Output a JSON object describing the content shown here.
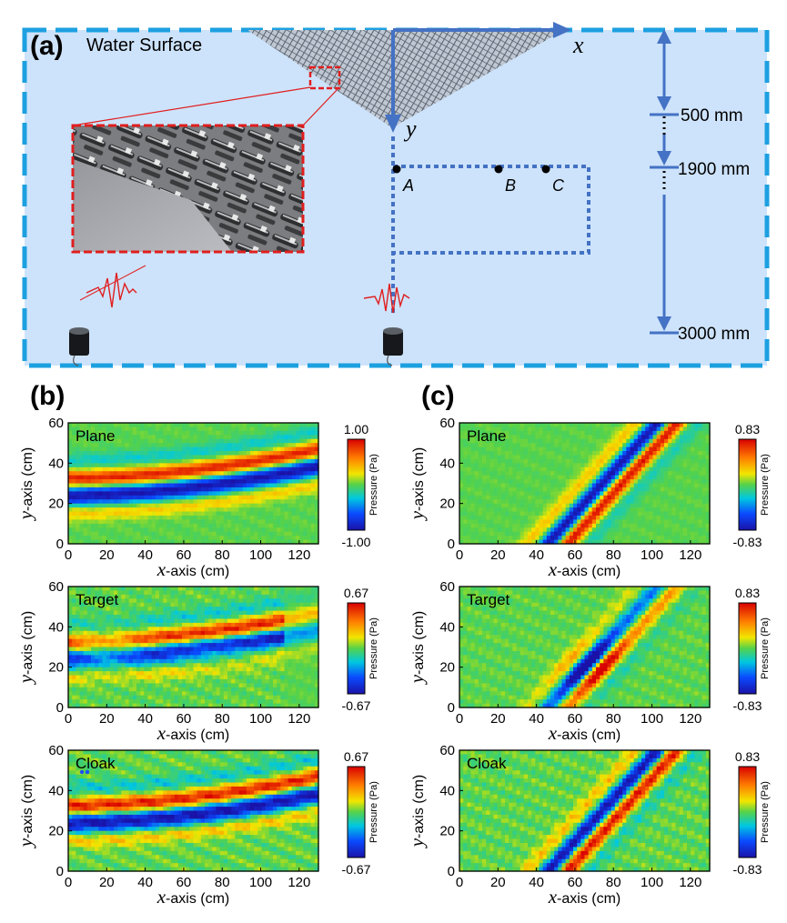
{
  "panel_a": {
    "letter": "(a)",
    "water_surface": "Water Surface",
    "x_axis": "x",
    "y_axis": "y",
    "points": [
      "A",
      "B",
      "C"
    ],
    "dims": [
      "500 mm",
      "1900 mm",
      "3000 mm"
    ]
  },
  "panel_b": {
    "letter": "(b)"
  },
  "panel_c": {
    "letter": "(c)"
  },
  "plot_labels": {
    "x_var": "x",
    "x_rest": "-axis (cm)",
    "y_var": "y",
    "y_rest": "-axis (cm)",
    "cb_title": "Pressure (Pa)"
  },
  "chart_data": [
    {
      "id": "b1",
      "type": "heatmap",
      "kind": "curved",
      "label": "Plane",
      "xlim": [
        0,
        130
      ],
      "ylim": [
        0,
        60
      ],
      "x_ticks": [
        "0",
        "20",
        "40",
        "60",
        "80",
        "100",
        "120"
      ],
      "y_ticks": [
        "0",
        "20",
        "40",
        "60"
      ],
      "colorbar": {
        "max": "1.00",
        "min": "-1.00"
      }
    },
    {
      "id": "b2",
      "type": "heatmap",
      "kind": "target_curved",
      "label": "Target",
      "xlim": [
        0,
        130
      ],
      "ylim": [
        0,
        60
      ],
      "x_ticks": [
        "0",
        "20",
        "40",
        "60",
        "80",
        "100",
        "120"
      ],
      "y_ticks": [
        "0",
        "20",
        "40",
        "60"
      ],
      "colorbar": {
        "max": "0.67",
        "min": "-0.67"
      }
    },
    {
      "id": "b3",
      "type": "heatmap",
      "kind": "curved_noisy",
      "label": "Cloak",
      "xlim": [
        0,
        130
      ],
      "ylim": [
        0,
        60
      ],
      "x_ticks": [
        "0",
        "20",
        "40",
        "60",
        "80",
        "100",
        "120"
      ],
      "y_ticks": [
        "0",
        "20",
        "40",
        "60"
      ],
      "colorbar": {
        "max": "0.67",
        "min": "-0.67"
      }
    },
    {
      "id": "c1",
      "type": "heatmap",
      "kind": "diagonal",
      "label": "Plane",
      "xlim": [
        0,
        130
      ],
      "ylim": [
        0,
        60
      ],
      "x_ticks": [
        "0",
        "20",
        "40",
        "60",
        "80",
        "100",
        "120"
      ],
      "y_ticks": [
        "0",
        "20",
        "40",
        "60"
      ],
      "colorbar": {
        "max": "0.83",
        "min": "-0.83"
      }
    },
    {
      "id": "c2",
      "type": "heatmap",
      "kind": "target_diagonal",
      "label": "Target",
      "xlim": [
        0,
        130
      ],
      "ylim": [
        0,
        60
      ],
      "x_ticks": [
        "0",
        "20",
        "40",
        "60",
        "80",
        "100",
        "120"
      ],
      "y_ticks": [
        "0",
        "20",
        "40",
        "60"
      ],
      "colorbar": {
        "max": "0.83",
        "min": "-0.83"
      }
    },
    {
      "id": "c3",
      "type": "heatmap",
      "kind": "diagonal_noisy",
      "label": "Cloak",
      "xlim": [
        0,
        130
      ],
      "ylim": [
        0,
        60
      ],
      "x_ticks": [
        "0",
        "20",
        "40",
        "60",
        "80",
        "100",
        "120"
      ],
      "y_ticks": [
        "0",
        "20",
        "40",
        "60"
      ],
      "colorbar": {
        "max": "0.83",
        "min": "-0.83"
      }
    }
  ]
}
